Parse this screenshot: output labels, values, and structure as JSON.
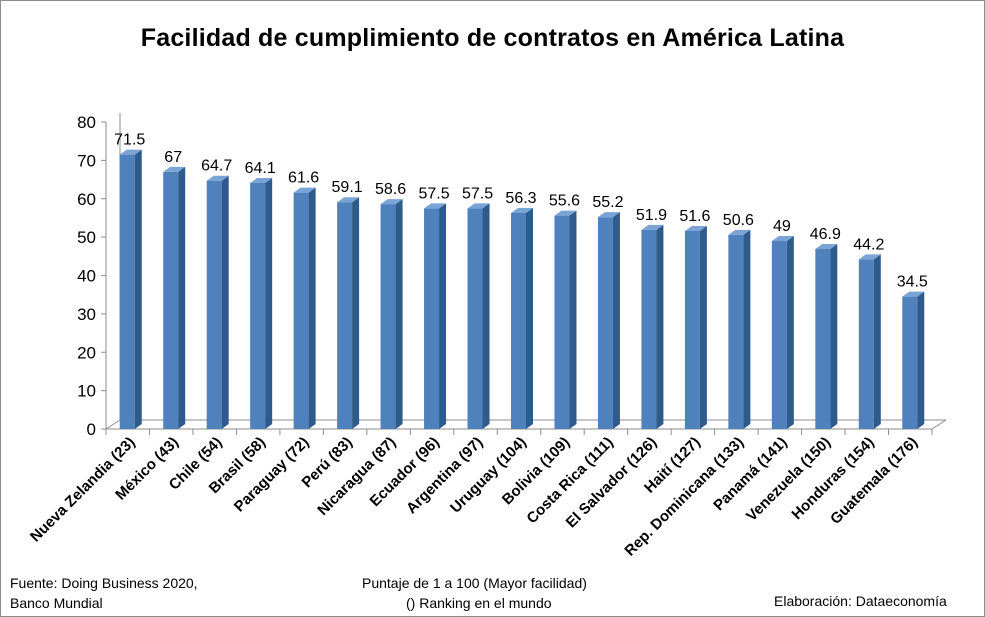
{
  "chart_data": {
    "type": "bar",
    "title": "Facilidad de cumplimiento de contratos en América Latina",
    "categories": [
      "Nueva Zelandia (23)",
      "México (43)",
      "Chile (54)",
      "Brasil (58)",
      "Paraguay (72)",
      "Perú (83)",
      "Nicaragua (87)",
      "Ecuador (96)",
      "Argentina (97)",
      "Uruguay (104)",
      "Bolivia (109)",
      "Costa Rica (111)",
      "El Salvador (126)",
      "Haití (127)",
      "Rep. Dominicana (133)",
      "Panamá (141)",
      "Venezuela (150)",
      "Honduras (154)",
      "Guatemala (176)"
    ],
    "values": [
      71.5,
      67,
      64.7,
      64.1,
      61.6,
      59.1,
      58.6,
      57.5,
      57.5,
      56.3,
      55.6,
      55.2,
      51.9,
      51.6,
      50.6,
      49,
      46.9,
      44.2,
      34.5
    ],
    "value_labels": [
      "71.5",
      "67",
      "64.7",
      "64.1",
      "61.6",
      "59.1",
      "58.6",
      "57.5",
      "57.5",
      "56.3",
      "55.6",
      "55.2",
      "51.9",
      "51.6",
      "50.6",
      "49",
      "46.9",
      "44.2",
      "34.5"
    ],
    "yticks": [
      "0",
      "10",
      "20",
      "30",
      "40",
      "50",
      "60",
      "70",
      "80"
    ],
    "ylim": [
      0,
      80
    ],
    "xlabel": "",
    "ylabel": "",
    "grid": false,
    "legend": "none",
    "bar_color": "#4f81bd",
    "bar_side_color": "#2f5a8c",
    "bar_top_color": "#7aa3d6"
  },
  "notes": {
    "source_line1": "Fuente: Doing Business 2020,",
    "source_line2": "Banco Mundial",
    "scale_line1": "Puntaje de 1 a 100 (Mayor facilidad)",
    "scale_line2": "() Ranking en el mundo",
    "author": "Elaboración: Dataeconomía"
  }
}
